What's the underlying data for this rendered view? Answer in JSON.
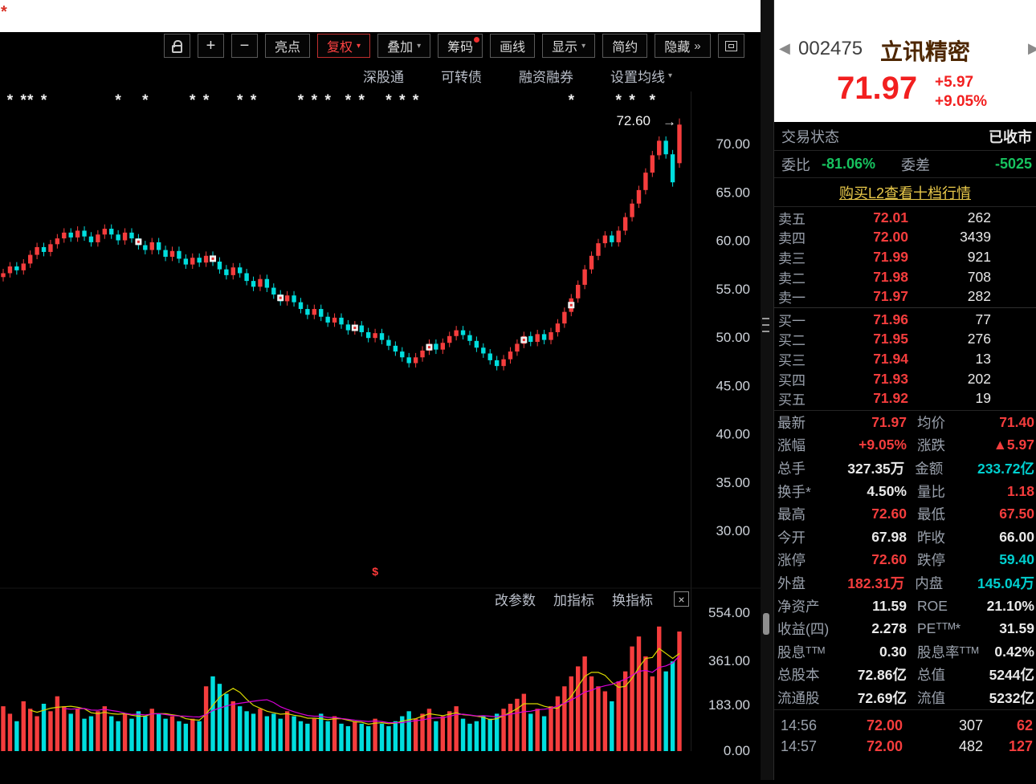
{
  "colors": {
    "up_red": "#f53d3d",
    "down_cyan": "#00dede",
    "link_gold": "#e8c84a",
    "green": "#17c35f",
    "label_gray": "#9aa1ac"
  },
  "top_strip": {
    "badge": "*"
  },
  "toolbar": {
    "zoom": {
      "plus": "+",
      "minus": "−"
    },
    "buttons": [
      {
        "id": "highlight",
        "label": "亮点"
      },
      {
        "id": "adjust",
        "label": "复权",
        "caret": true,
        "active": true
      },
      {
        "id": "overlay",
        "label": "叠加",
        "caret": true
      },
      {
        "id": "chips",
        "label": "筹码",
        "dot": true
      },
      {
        "id": "draw-line",
        "label": "画线"
      },
      {
        "id": "display",
        "label": "显示",
        "caret": true
      },
      {
        "id": "simple",
        "label": "简约"
      },
      {
        "id": "hide",
        "label": "隐藏",
        "chevrons": "»"
      }
    ]
  },
  "subtabs": [
    {
      "id": "sz-hk-connect",
      "label": "深股通"
    },
    {
      "id": "convertible-bond",
      "label": "可转债"
    },
    {
      "id": "margin-trading",
      "label": "融资融券"
    },
    {
      "id": "ma-settings",
      "label": "设置均线",
      "caret": true
    }
  ],
  "chart": {
    "annotation_arrow": "→",
    "price_axis_labels": [
      "70.00",
      "65.00",
      "60.00",
      "55.00",
      "50.00",
      "45.00",
      "40.00",
      "35.00",
      "30.00"
    ],
    "volume_axis_labels": [
      "554.00",
      "361.00",
      "183.00",
      "0.00"
    ]
  },
  "volume_toolbar": {
    "items": [
      {
        "id": "change-params",
        "label": "改参数"
      },
      {
        "id": "add-indicator",
        "label": "加指标"
      },
      {
        "id": "switch-indicator",
        "label": "换指标"
      }
    ],
    "close": "×"
  },
  "panel": {
    "nav_left": "◀",
    "nav_right": "▶",
    "code": "002475",
    "name": "立讯精密",
    "price": "71.97",
    "change": "+5.97",
    "change_pct": "+9.05%",
    "status_label": "交易状态",
    "status_value": "已收市",
    "weibi_label": "委比",
    "weibi_value": "-81.06%",
    "weicha_label": "委差",
    "weicha_value": "-5025",
    "l2_link": "购买L2查看十档行情",
    "sells": [
      {
        "label": "卖五",
        "price": "72.01",
        "amount": "262"
      },
      {
        "label": "卖四",
        "price": "72.00",
        "amount": "3439"
      },
      {
        "label": "卖三",
        "price": "71.99",
        "amount": "921"
      },
      {
        "label": "卖二",
        "price": "71.98",
        "amount": "708"
      },
      {
        "label": "卖一",
        "price": "71.97",
        "amount": "282"
      }
    ],
    "buys": [
      {
        "label": "买一",
        "price": "71.96",
        "amount": "77"
      },
      {
        "label": "买二",
        "price": "71.95",
        "amount": "276"
      },
      {
        "label": "买三",
        "price": "71.94",
        "amount": "13"
      },
      {
        "label": "买四",
        "price": "71.93",
        "amount": "202"
      },
      {
        "label": "买五",
        "price": "71.92",
        "amount": "19"
      }
    ],
    "stats": [
      {
        "l1": "最新",
        "v1": "71.97",
        "c1": "red",
        "l2": "均价",
        "v2": "71.40",
        "c2": "red"
      },
      {
        "l1": "涨幅",
        "v1": "+9.05%",
        "c1": "red",
        "l2": "涨跌",
        "v2": "▲5.97",
        "c2": "red"
      },
      {
        "l1": "总手",
        "v1": "327.35万",
        "c1": "white",
        "l2": "金额",
        "v2": "233.72亿",
        "c2": "cyan"
      },
      {
        "l1": "换手*",
        "v1": "4.50%",
        "c1": "white",
        "l2": "量比",
        "v2": "1.18",
        "c2": "red"
      },
      {
        "l1": "最高",
        "v1": "72.60",
        "c1": "red",
        "l2": "最低",
        "v2": "67.50",
        "c2": "red"
      },
      {
        "l1": "今开",
        "v1": "67.98",
        "c1": "white",
        "l2": "昨收",
        "v2": "66.00",
        "c2": "white"
      },
      {
        "l1": "涨停",
        "v1": "72.60",
        "c1": "red",
        "l2": "跌停",
        "v2": "59.40",
        "c2": "cyan"
      },
      {
        "l1": "外盘",
        "v1": "182.31万",
        "c1": "red",
        "l2": "内盘",
        "v2": "145.04万",
        "c2": "cyan"
      },
      {
        "l1": "净资产",
        "v1": "11.59",
        "c1": "white",
        "l2": "ROE",
        "v2": "21.10%",
        "c2": "white"
      },
      {
        "l1": "收益(四)",
        "v1": "2.278",
        "c1": "white",
        "l2": "PEᵀᵀᴹ*",
        "v2": "31.59",
        "c2": "white"
      },
      {
        "l1": "股息ᵀᵀᴹ",
        "v1": "0.30",
        "c1": "white",
        "l2": "股息率ᵀᵀᴹ",
        "v2": "0.42%",
        "c2": "white"
      },
      {
        "l1": "总股本",
        "v1": "72.86亿",
        "c1": "white",
        "l2": "总值",
        "v2": "5244亿",
        "c2": "white"
      },
      {
        "l1": "流通股",
        "v1": "72.69亿",
        "c1": "white",
        "l2": "流值",
        "v2": "5232亿",
        "c2": "white"
      }
    ],
    "ticks": [
      {
        "time": "14:56",
        "price": "72.00",
        "vol": "307",
        "count": "62"
      },
      {
        "time": "14:57",
        "price": "72.00",
        "vol": "482",
        "count": "127"
      }
    ]
  },
  "chart_data": {
    "type": "candlestick",
    "symbol": "002475 立讯精密",
    "first_open": 56.2,
    "closes": [
      56.6,
      57.3,
      56.9,
      57.6,
      58.5,
      59.3,
      58.8,
      59.6,
      60.2,
      60.8,
      60.3,
      61.0,
      60.4,
      59.8,
      60.6,
      61.2,
      60.6,
      60.0,
      60.8,
      60.2,
      59.5,
      59.0,
      59.8,
      59.0,
      58.3,
      58.9,
      58.1,
      57.5,
      58.2,
      57.7,
      58.4,
      57.8,
      57.0,
      56.4,
      57.2,
      56.6,
      55.8,
      55.2,
      56.0,
      55.1,
      54.4,
      53.7,
      54.3,
      53.6,
      52.9,
      52.3,
      52.9,
      52.1,
      51.5,
      52.0,
      51.3,
      50.7,
      51.2,
      50.5,
      49.9,
      50.4,
      49.7,
      49.1,
      48.5,
      47.9,
      47.3,
      47.9,
      48.6,
      49.3,
      48.7,
      49.4,
      50.1,
      50.7,
      50.2,
      49.6,
      48.9,
      48.3,
      47.6,
      47.0,
      47.7,
      48.5,
      49.3,
      50.1,
      49.5,
      50.3,
      49.7,
      50.5,
      51.4,
      52.6,
      54.0,
      55.4,
      57.0,
      58.4,
      59.7,
      60.5,
      59.8,
      61.0,
      62.4,
      63.8,
      65.2,
      67.0,
      68.8,
      70.3,
      68.9,
      66.0,
      71.97
    ],
    "volumes": [
      180,
      150,
      120,
      200,
      170,
      140,
      190,
      160,
      220,
      180,
      150,
      170,
      130,
      140,
      160,
      180,
      140,
      120,
      150,
      130,
      160,
      140,
      170,
      150,
      130,
      140,
      120,
      110,
      130,
      120,
      260,
      300,
      270,
      230,
      200,
      180,
      160,
      150,
      170,
      140,
      150,
      130,
      160,
      140,
      120,
      110,
      130,
      150,
      120,
      140,
      110,
      100,
      120,
      110,
      100,
      130,
      110,
      100,
      120,
      140,
      160,
      130,
      150,
      170,
      120,
      140,
      160,
      180,
      130,
      110,
      120,
      140,
      130,
      150,
      170,
      190,
      210,
      230,
      150,
      170,
      140,
      180,
      220,
      260,
      300,
      340,
      380,
      300,
      260,
      240,
      200,
      280,
      320,
      420,
      460,
      380,
      300,
      500,
      320,
      360,
      480
    ],
    "last_candle": {
      "open": 67.98,
      "high": 72.6,
      "low": 67.5,
      "close": 71.97
    },
    "price_axis_ticks": [
      70,
      65,
      60,
      55,
      50,
      45,
      40,
      35,
      30
    ],
    "volume_axis_ticks": [
      554,
      361,
      183,
      0
    ],
    "annotation": {
      "text": "72.60",
      "value": 72.6
    },
    "event_marker_glyph": "*",
    "event_marker_indices": [
      1,
      3,
      4,
      6,
      17,
      21,
      28,
      30,
      35,
      37,
      44,
      46,
      48,
      51,
      53,
      57,
      59,
      61,
      84,
      91,
      93,
      96
    ],
    "flag_indices": [
      20,
      31,
      41,
      52,
      63,
      77,
      84
    ],
    "dollar_marker": {
      "index": 55,
      "glyph": "$"
    }
  }
}
